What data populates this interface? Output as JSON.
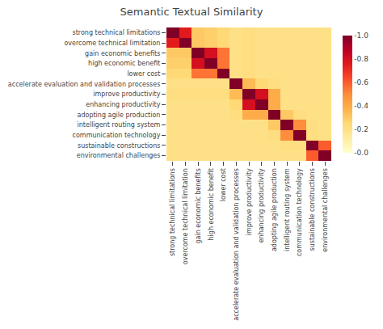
{
  "chart_data": {
    "type": "heatmap",
    "title": "Semantic Textual Similarity",
    "categories": [
      "strong technical limitations",
      "overcome technical limitation",
      "gain economic benefits",
      "high economic benefit",
      "lower cost",
      "accelerate evaluation and validation processes",
      "improve productivity",
      "enhancing productivity",
      "adopting agile production",
      "intelligent routing system",
      "communication technology",
      "sustainable constructions",
      "environmental challenges"
    ],
    "cells": [
      [
        1.0,
        0.75,
        0.3,
        0.28,
        0.25,
        0.2,
        0.22,
        0.2,
        0.2,
        0.2,
        0.2,
        0.2,
        0.2
      ],
      [
        0.75,
        1.0,
        0.3,
        0.28,
        0.25,
        0.2,
        0.22,
        0.2,
        0.2,
        0.2,
        0.2,
        0.2,
        0.2
      ],
      [
        0.3,
        0.3,
        1.0,
        0.8,
        0.55,
        0.2,
        0.22,
        0.2,
        0.2,
        0.2,
        0.2,
        0.2,
        0.2
      ],
      [
        0.28,
        0.28,
        0.8,
        1.0,
        0.55,
        0.2,
        0.22,
        0.2,
        0.2,
        0.2,
        0.2,
        0.2,
        0.2
      ],
      [
        0.25,
        0.25,
        0.55,
        0.55,
        1.0,
        0.2,
        0.22,
        0.2,
        0.2,
        0.2,
        0.2,
        0.2,
        0.2
      ],
      [
        0.2,
        0.2,
        0.2,
        0.2,
        0.2,
        1.0,
        0.35,
        0.25,
        0.22,
        0.2,
        0.2,
        0.2,
        0.2
      ],
      [
        0.22,
        0.22,
        0.22,
        0.22,
        0.22,
        0.35,
        1.0,
        0.8,
        0.4,
        0.2,
        0.2,
        0.2,
        0.2
      ],
      [
        0.2,
        0.2,
        0.2,
        0.2,
        0.2,
        0.25,
        0.8,
        1.0,
        0.4,
        0.2,
        0.2,
        0.2,
        0.2
      ],
      [
        0.2,
        0.2,
        0.2,
        0.2,
        0.2,
        0.22,
        0.4,
        0.4,
        1.0,
        0.3,
        0.22,
        0.2,
        0.2
      ],
      [
        0.2,
        0.2,
        0.2,
        0.2,
        0.2,
        0.2,
        0.2,
        0.2,
        0.3,
        1.0,
        0.5,
        0.22,
        0.2
      ],
      [
        0.2,
        0.2,
        0.2,
        0.2,
        0.2,
        0.2,
        0.2,
        0.2,
        0.22,
        0.5,
        1.0,
        0.22,
        0.2
      ],
      [
        0.2,
        0.2,
        0.2,
        0.2,
        0.2,
        0.2,
        0.2,
        0.2,
        0.2,
        0.22,
        0.22,
        1.0,
        0.6
      ],
      [
        0.2,
        0.2,
        0.2,
        0.2,
        0.2,
        0.2,
        0.2,
        0.2,
        0.2,
        0.2,
        0.2,
        0.6,
        1.0
      ]
    ],
    "color": "YlOrRd",
    "colorbar_range": [
      0.0,
      1.0
    ],
    "colorbar_ticks": [
      {
        "value": 0.0,
        "label": "-0.0"
      },
      {
        "value": 0.2,
        "label": "-0.2"
      },
      {
        "value": 0.4,
        "label": "-0.4"
      },
      {
        "value": 0.6,
        "label": "-0.6"
      },
      {
        "value": 0.8,
        "label": "-0.8"
      },
      {
        "value": 1.0,
        "label": "-1.0"
      }
    ],
    "grid": false
  }
}
